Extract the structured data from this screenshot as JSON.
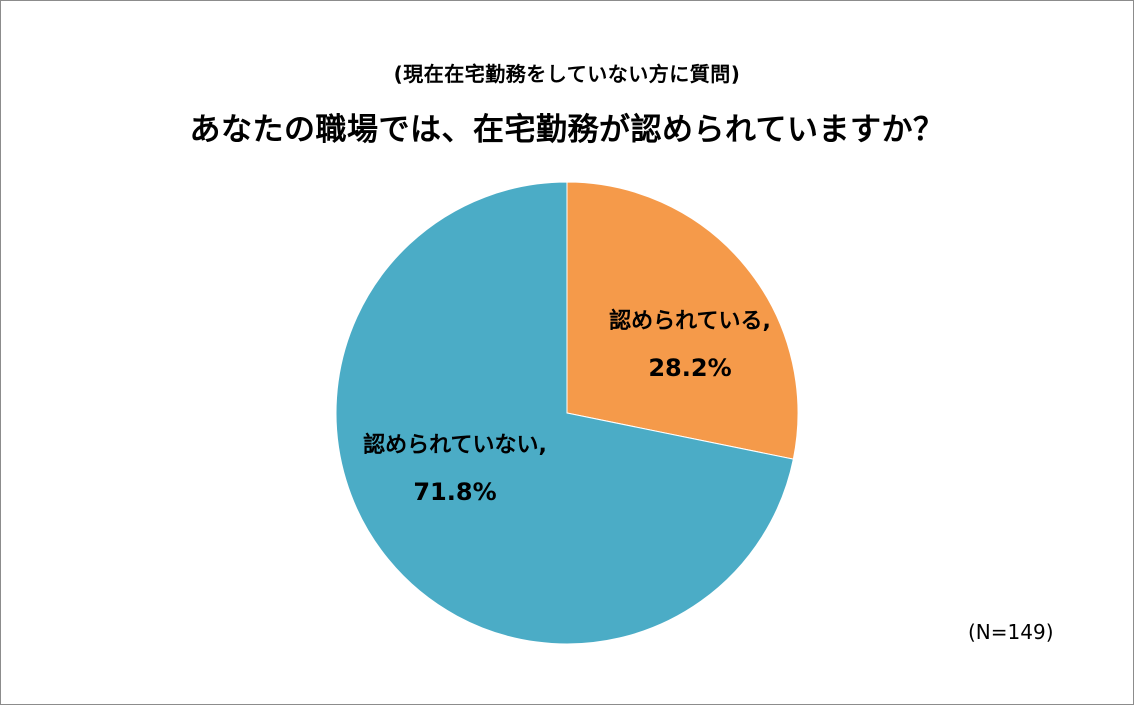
{
  "chart_data": {
    "type": "pie",
    "subtitle": "(現在在宅勤務をしていない方に質問)",
    "title": "あなたの職場では、在宅勤務が認められていますか？",
    "slices": [
      {
        "label": "認められている,",
        "value": 28.2,
        "display": "28.2%",
        "color": "#f59a4a"
      },
      {
        "label": "認められていない,",
        "value": 71.8,
        "display": "71.8%",
        "color": "#4bacc6"
      }
    ],
    "start_angle_deg": 0,
    "direction": "clockwise",
    "legend": "none",
    "note": "(N=149)"
  }
}
